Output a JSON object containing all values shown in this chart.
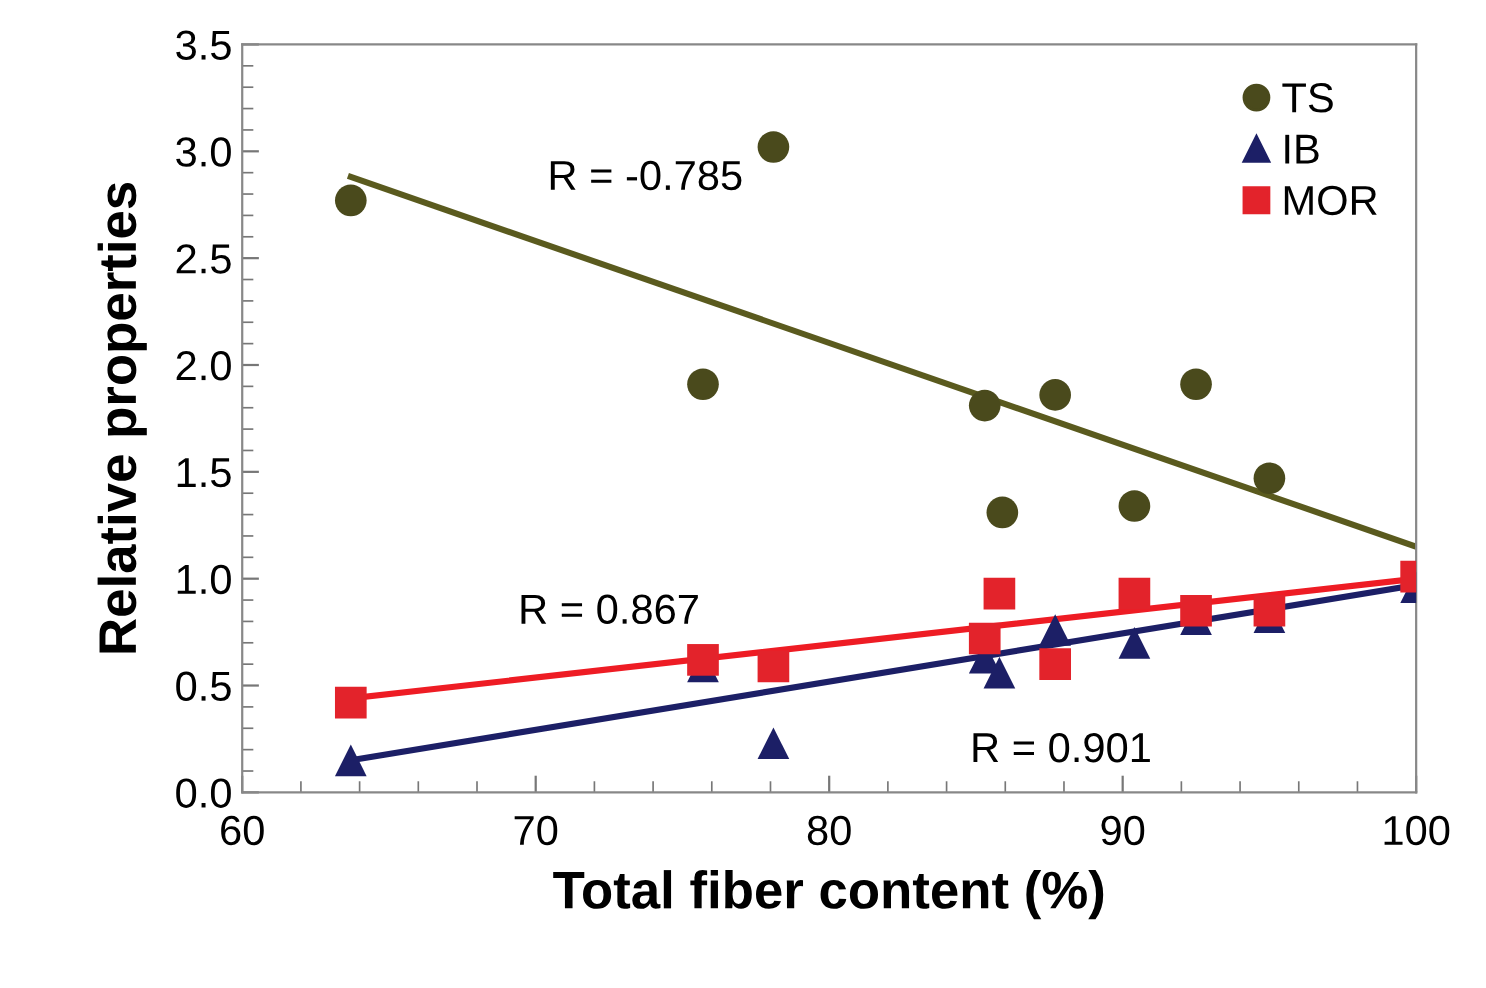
{
  "chart_data": {
    "type": "scatter",
    "xlabel": "Total fiber content (%)",
    "ylabel": "Relative properties",
    "xlim": [
      60,
      100
    ],
    "xticks": [
      60,
      70,
      80,
      90,
      100
    ],
    "ylim": [
      0,
      3.5
    ],
    "yticks": [
      {
        "value": 0,
        "label": "0.0"
      },
      {
        "value": 0.5,
        "label": "0.5"
      },
      {
        "value": 1,
        "label": "1.0"
      },
      {
        "value": 1.5,
        "label": "1.5"
      },
      {
        "value": 2,
        "label": "2.0"
      },
      {
        "value": 2.5,
        "label": "2.5"
      },
      {
        "value": 3,
        "label": "3.0"
      },
      {
        "value": 3.5,
        "label": "3.5"
      }
    ],
    "grid": false,
    "legend": "top right",
    "annotations": [
      "R = -0.785",
      "R = 0.867",
      "R = 0.901"
    ],
    "series": [
      {
        "name": "TS",
        "marker": "circle",
        "color": "#4a4a1c",
        "x": [
          63.7,
          78.1,
          75.7,
          85.3,
          85.9,
          87.7,
          90.4,
          92.5,
          95.0
        ],
        "values": [
          2.77,
          3.02,
          1.91,
          1.81,
          1.31,
          1.86,
          1.34,
          1.91,
          1.47
        ]
      },
      {
        "name": "IB",
        "marker": "triangle",
        "color": "#1c1f66",
        "x": [
          63.7,
          75.7,
          78.1,
          85.3,
          85.8,
          87.7,
          90.4,
          92.5,
          95.0,
          100
        ],
        "values": [
          0.15,
          0.59,
          0.23,
          0.63,
          0.56,
          0.76,
          0.7,
          0.81,
          0.82,
          0.96
        ]
      },
      {
        "name": "MOR",
        "marker": "square",
        "color": "#e3232b",
        "x": [
          63.7,
          75.7,
          78.1,
          85.3,
          85.8,
          87.7,
          90.4,
          92.5,
          95.0,
          100
        ],
        "values": [
          0.42,
          0.62,
          0.59,
          0.72,
          0.93,
          0.6,
          0.93,
          0.85,
          0.85,
          1.01
        ]
      },
      {
        "type": "line",
        "color": "#5a5a1e",
        "x": [
          63.7,
          100
        ],
        "values": [
          2.88,
          1.15
        ]
      },
      {
        "type": "line",
        "color": "#1c1f66",
        "x": [
          63.7,
          100
        ],
        "values": [
          0.15,
          0.97
        ]
      },
      {
        "type": "line",
        "color": "#ee1c24",
        "x": [
          63.7,
          100
        ],
        "values": [
          0.44,
          1.0
        ]
      }
    ]
  }
}
